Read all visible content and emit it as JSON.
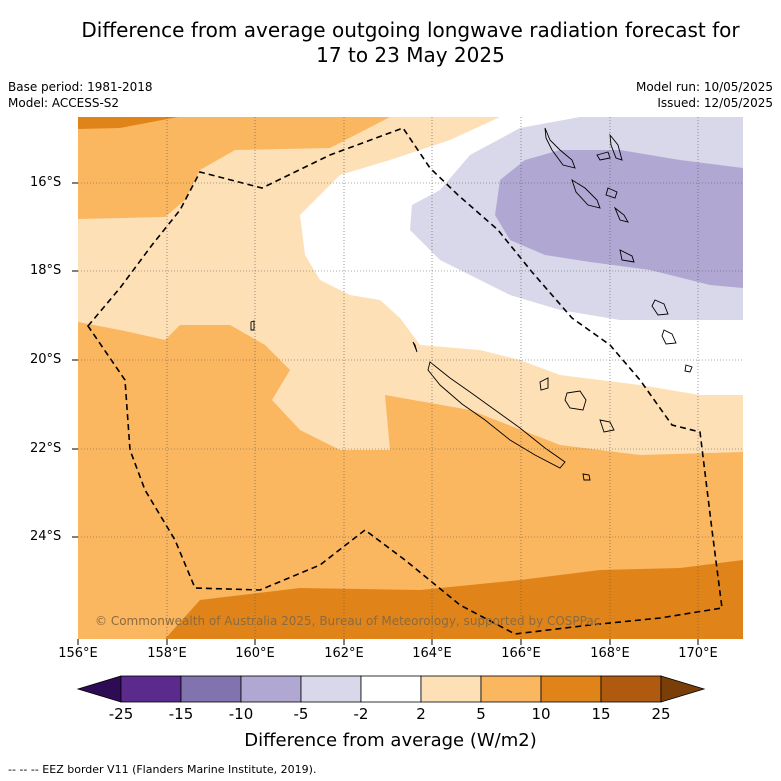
{
  "title_line1": "Difference from average outgoing longwave radiation forecast for",
  "title_line2": "17 to 23 May 2025",
  "base_period": "Base period: 1981-2018",
  "model": "Model: ACCESS-S2",
  "model_run": "Model run: 10/05/2025",
  "issued": "Issued: 12/05/2025",
  "copyright": "© Commonwealth of Australia 2025, Bureau of Meteorology, supported by COSPPac",
  "lat_labels": [
    "16°S",
    "18°S",
    "20°S",
    "22°S",
    "24°S"
  ],
  "lon_labels": [
    "156°E",
    "158°E",
    "160°E",
    "162°E",
    "164°E",
    "166°E",
    "168°E",
    "170°E"
  ],
  "colorbar": {
    "title": "Difference from average (W/m2)",
    "ticks": [
      "-25",
      "-15",
      "-10",
      "-5",
      "-2",
      "2",
      "5",
      "10",
      "15",
      "25"
    ],
    "colors": [
      "#2e0b55",
      "#5a2b8c",
      "#8173ae",
      "#b0a8d2",
      "#d9d8ea",
      "#ffffff",
      "#fde0b6",
      "#fbb660",
      "#e0841a",
      "#b05a10",
      "#7a3f08"
    ]
  },
  "legend_footer": "-- -- -- EEZ border V11 (Flanders Marine Institute, 2019)."
}
